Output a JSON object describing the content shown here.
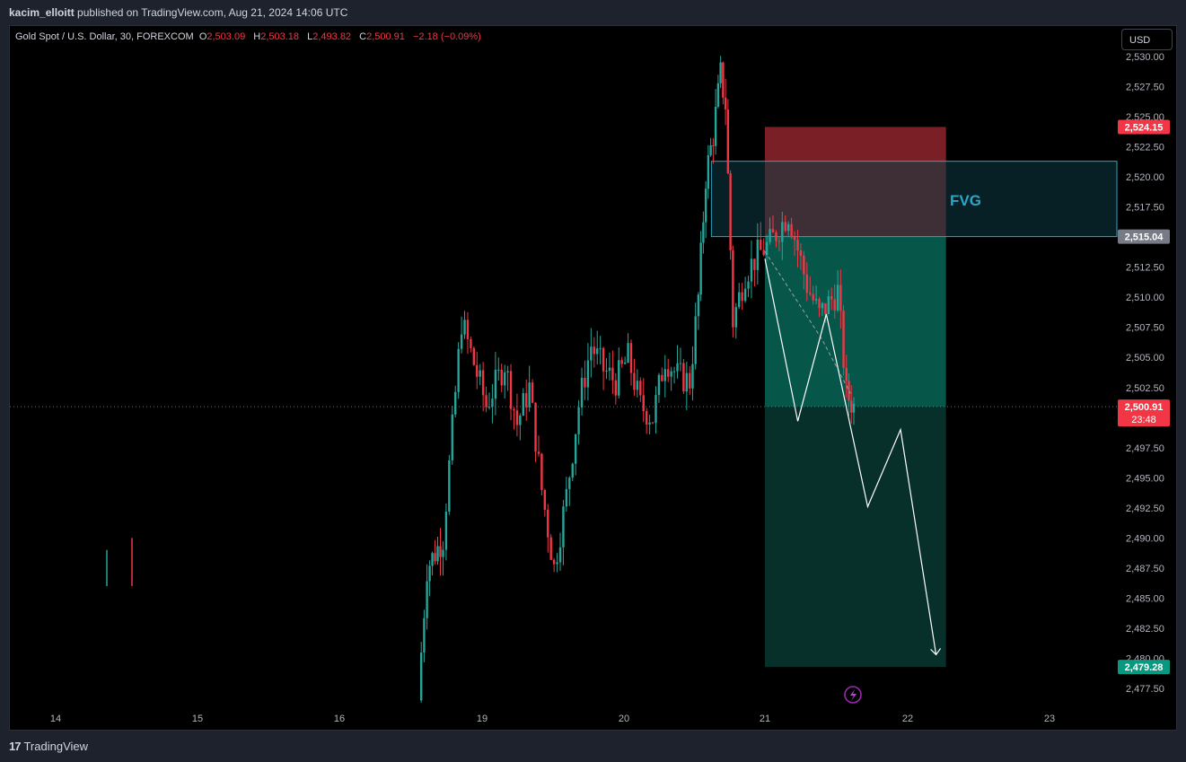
{
  "header": {
    "author": "kacim_elloitt",
    "published_text": "published on TradingView.com, Aug 21, 2024 14:06 UTC"
  },
  "legend": {
    "symbol": "Gold Spot / U.S. Dollar, 30, FOREXCOM",
    "o_label": "O",
    "o_value": "2,503.09",
    "h_label": "H",
    "h_value": "2,503.18",
    "l_label": "L",
    "l_value": "2,493.82",
    "c_label": "C",
    "c_value": "2,500.91",
    "change": "−2.18 (−0.09%)"
  },
  "currency_button": "USD",
  "footer": {
    "brand": "TradingView",
    "icon": "tradingview-logo-icon"
  },
  "colors": {
    "up": "#26a69a",
    "down": "#f23645",
    "fvg_fill": "#0c3a44",
    "fvg_border": "#2aa6c8",
    "stop_zone": "#7a1f26",
    "target_zone": "#07564a",
    "target_lower": "#07302a",
    "fvg_label": "#2aa6c8"
  },
  "chart_data": {
    "type": "candlestick",
    "title": "Gold Spot / U.S. Dollar, 30, FOREXCOM",
    "ylim": [
      2476,
      2531
    ],
    "y_ticks": [
      "2,477.50",
      "2,480.00",
      "2,482.50",
      "2,485.00",
      "2,487.50",
      "2,490.00",
      "2,492.50",
      "2,495.00",
      "2,497.50",
      "2,500.00",
      "2,502.50",
      "2,505.00",
      "2,507.50",
      "2,510.00",
      "2,512.50",
      "2,517.50",
      "2,520.00",
      "2,522.50",
      "2,525.00",
      "2,527.50",
      "2,530.00"
    ],
    "x_ticks": [
      {
        "label": "14",
        "day": 14
      },
      {
        "label": "15",
        "day": 15
      },
      {
        "label": "16",
        "day": 16
      },
      {
        "label": "19",
        "day": 19
      },
      {
        "label": "20",
        "day": 20
      },
      {
        "label": "21",
        "day": 21
      },
      {
        "label": "22",
        "day": 22
      },
      {
        "label": "23",
        "day": 23
      }
    ],
    "price_labels": [
      {
        "label": "2,524.15",
        "value": 2524.15,
        "color": "#f23645"
      },
      {
        "label": "2,515.04",
        "value": 2515.04,
        "color": "#787b86"
      },
      {
        "label": "2,500.91",
        "value": 2500.91,
        "color": "#f23645",
        "sub": "23:48"
      },
      {
        "label": "2,479.28",
        "value": 2479.28,
        "color": "#089981"
      }
    ],
    "current_price": 2500.91,
    "fvg": {
      "label": "FVG",
      "top": 2521.3,
      "bottom": 2515.04,
      "start_day": 20.62
    },
    "position": {
      "start_day": 21.0,
      "end_day": 22.27,
      "stop": 2524.15,
      "entry": 2515.04,
      "current": 2500.91,
      "target": 2479.28
    },
    "projection_path": [
      {
        "day": 21.0,
        "price": 2513.2
      },
      {
        "day": 21.23,
        "price": 2499.7
      },
      {
        "day": 21.43,
        "price": 2508.6
      },
      {
        "day": 21.72,
        "price": 2492.6
      },
      {
        "day": 21.95,
        "price": 2499.0
      },
      {
        "day": 22.2,
        "price": 2480.3
      }
    ],
    "dashed_path": [
      {
        "day": 21.0,
        "price": 2513.8
      },
      {
        "day": 21.4,
        "price": 2506.5
      },
      {
        "day": 21.6,
        "price": 2502.0
      }
    ],
    "anchors": [
      {
        "day": 16.55,
        "close": 2477.0
      },
      {
        "day": 16.62,
        "close": 2487.5
      },
      {
        "day": 16.75,
        "close": 2490.0
      },
      {
        "day": 16.9,
        "close": 2508.0
      },
      {
        "day": 17.0,
        "close": 2504.5
      },
      {
        "day": 17.1,
        "close": 2501.0
      },
      {
        "day": 17.25,
        "close": 2504.5
      },
      {
        "day": 17.35,
        "close": 2499.5
      },
      {
        "day": 17.45,
        "close": 2502.5
      },
      {
        "day": 17.55,
        "close": 2494.0
      },
      {
        "day": 17.65,
        "close": 2487.5
      },
      {
        "day": 17.75,
        "close": 2493.5
      },
      {
        "day": 17.85,
        "close": 2501.0
      },
      {
        "day": 17.95,
        "close": 2506.0
      },
      {
        "day": 18.05,
        "close": 2504.0
      },
      {
        "day": 18.15,
        "close": 2503.0
      },
      {
        "day": 18.25,
        "close": 2505.0
      },
      {
        "day": 18.35,
        "close": 2501.0
      },
      {
        "day": 18.45,
        "close": 2500.0
      },
      {
        "day": 18.55,
        "close": 2505.0
      },
      {
        "day": 18.65,
        "close": 2503.5
      },
      {
        "day": 18.75,
        "close": 2503.0
      },
      {
        "day": 18.82,
        "close": 2510.0
      },
      {
        "day": 18.88,
        "close": 2520.0
      },
      {
        "day": 18.94,
        "close": 2523.5
      },
      {
        "day": 19.0,
        "close": 2528.5
      },
      {
        "day": 19.04,
        "close": 2526.0
      },
      {
        "day": 19.1,
        "close": 2508.0
      },
      {
        "day": 19.2,
        "close": 2512.0
      },
      {
        "day": 19.3,
        "close": 2513.5
      },
      {
        "day": 19.4,
        "close": 2514.5
      },
      {
        "day": 19.55,
        "close": 2517.0
      },
      {
        "day": 19.7,
        "close": 2511.0
      },
      {
        "day": 19.8,
        "close": 2508.5
      },
      {
        "day": 19.95,
        "close": 2510.5
      },
      {
        "day": 20.02,
        "close": 2502.0
      },
      {
        "day": 20.08,
        "close": 2500.91
      }
    ]
  }
}
